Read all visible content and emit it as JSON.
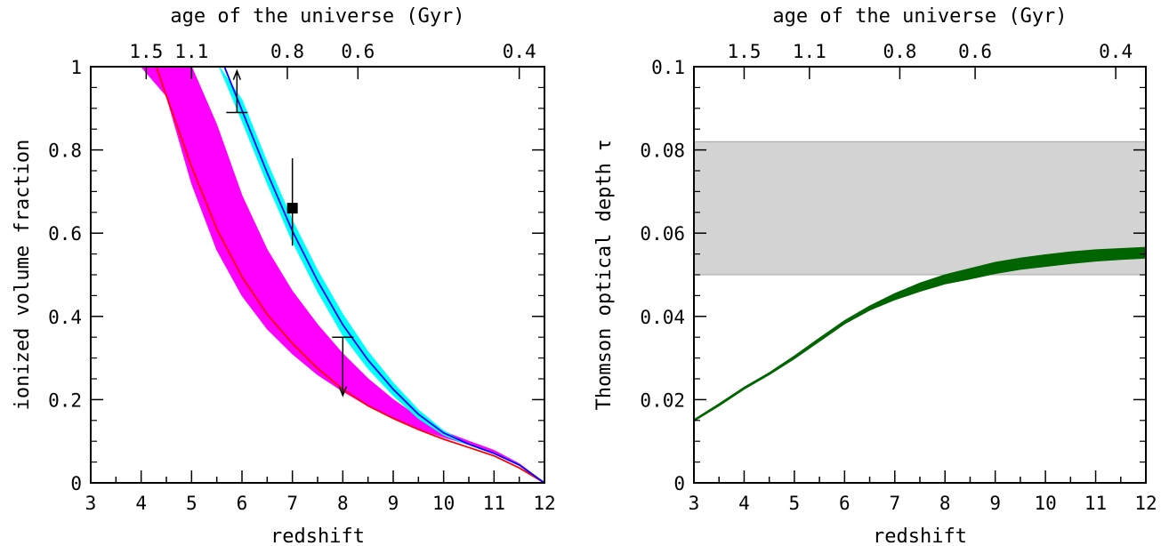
{
  "chart_data": [
    {
      "type": "line",
      "xlabel": "redshift",
      "ylabel": "ionized volume fraction",
      "top_axis_label": "age of the universe (Gyr)",
      "xlim": [
        3,
        12
      ],
      "ylim": [
        0,
        1
      ],
      "x_ticks": [
        "3",
        "4",
        "5",
        "6",
        "7",
        "8",
        "9",
        "10",
        "11",
        "12"
      ],
      "y_ticks": [
        "0",
        "0.2",
        "0.4",
        "0.6",
        "0.8",
        "1"
      ],
      "top_ticks": [
        {
          "label": "1.5",
          "z": 4.1
        },
        {
          "label": "1.1",
          "z": 5.0
        },
        {
          "label": "0.8",
          "z": 6.9
        },
        {
          "label": "0.6",
          "z": 8.3
        },
        {
          "label": "0.4",
          "z": 11.5
        }
      ],
      "series": [
        {
          "kind": "band",
          "color": "#ff00ff",
          "x": [
            4.0,
            4.5,
            5.0,
            5.5,
            6.0,
            6.5,
            7.0,
            7.5,
            8.0,
            8.5,
            9.0,
            9.5,
            10.0,
            10.5,
            11.0,
            11.5,
            12.0
          ],
          "lower": [
            1.0,
            0.93,
            0.72,
            0.56,
            0.45,
            0.37,
            0.31,
            0.26,
            0.22,
            0.185,
            0.155,
            0.13,
            0.11,
            0.092,
            0.07,
            0.042,
            0.0
          ],
          "upper": [
            1.0,
            1.0,
            1.0,
            0.86,
            0.69,
            0.56,
            0.46,
            0.38,
            0.31,
            0.25,
            0.2,
            0.158,
            0.123,
            0.1,
            0.078,
            0.046,
            0.0
          ]
        },
        {
          "kind": "line",
          "color": "#ff0000",
          "x": [
            4.3,
            4.5,
            5.0,
            5.5,
            6.0,
            6.5,
            7.0,
            7.5,
            8.0,
            8.5,
            9.0,
            9.5,
            10.0,
            10.5,
            11.0,
            11.5,
            12.0
          ],
          "y": [
            1.0,
            0.93,
            0.76,
            0.61,
            0.495,
            0.405,
            0.335,
            0.275,
            0.225,
            0.185,
            0.155,
            0.128,
            0.105,
            0.085,
            0.065,
            0.036,
            0.0
          ]
        },
        {
          "kind": "band",
          "color": "#00ffff",
          "x": [
            5.55,
            6.0,
            6.5,
            7.0,
            7.5,
            8.0,
            8.5,
            9.0,
            9.5,
            10.0,
            10.3,
            10.5,
            11.0,
            11.5,
            12.0
          ],
          "lower": [
            1.0,
            0.87,
            0.72,
            0.58,
            0.46,
            0.355,
            0.275,
            0.21,
            0.155,
            0.115,
            0.1,
            0.092,
            0.07,
            0.042,
            0.0
          ],
          "upper": [
            1.0,
            0.92,
            0.77,
            0.63,
            0.51,
            0.405,
            0.315,
            0.24,
            0.175,
            0.125,
            0.105,
            0.094,
            0.072,
            0.044,
            0.0
          ]
        },
        {
          "kind": "line",
          "color": "#0000ff",
          "x": [
            5.65,
            6.0,
            6.5,
            7.0,
            7.5,
            8.0,
            8.5,
            9.0,
            9.5,
            10.0,
            10.5,
            11.0,
            11.5,
            12.0
          ],
          "y": [
            1.0,
            0.895,
            0.745,
            0.605,
            0.485,
            0.38,
            0.295,
            0.225,
            0.165,
            0.12,
            0.093,
            0.071,
            0.043,
            0.0
          ]
        }
      ],
      "measurements": [
        {
          "kind": "point",
          "z": 7.0,
          "x_ion": 0.66,
          "err_low": 0.57,
          "err_high": 0.78
        },
        {
          "kind": "lower_limit",
          "z": 5.9,
          "x_ion": 0.89,
          "limit": 0.99
        },
        {
          "kind": "upper_limit",
          "z": 8.0,
          "x_ion": 0.35,
          "limit": 0.21
        }
      ]
    },
    {
      "type": "area",
      "xlabel": "redshift",
      "ylabel": "Thomson optical depth τ",
      "top_axis_label": "age of the universe (Gyr)",
      "xlim": [
        3,
        12
      ],
      "ylim": [
        0,
        0.1
      ],
      "x_ticks": [
        "3",
        "4",
        "5",
        "6",
        "7",
        "8",
        "9",
        "10",
        "11",
        "12"
      ],
      "y_ticks": [
        "0",
        "0.02",
        "0.04",
        "0.06",
        "0.08",
        "0.1"
      ],
      "top_ticks": [
        {
          "label": "1.5",
          "z": 4.0
        },
        {
          "label": "1.1",
          "z": 5.3
        },
        {
          "label": "0.8",
          "z": 7.1
        },
        {
          "label": "0.6",
          "z": 8.6
        },
        {
          "label": "0.4",
          "z": 11.4
        }
      ],
      "measurement_band": {
        "lower": 0.05,
        "upper": 0.082,
        "color": "#d3d3d3"
      },
      "series": [
        {
          "kind": "band",
          "color": "#006400",
          "x": [
            3,
            3.5,
            4,
            4.5,
            5,
            5.5,
            6,
            6.5,
            7,
            7.5,
            8,
            8.5,
            9,
            9.5,
            10,
            10.5,
            11,
            11.5,
            12
          ],
          "lower": [
            0.0148,
            0.0185,
            0.0225,
            0.026,
            0.0298,
            0.034,
            0.0382,
            0.0415,
            0.044,
            0.046,
            0.0478,
            0.049,
            0.0503,
            0.0513,
            0.052,
            0.0527,
            0.0533,
            0.0537,
            0.054
          ],
          "upper": [
            0.0152,
            0.019,
            0.023,
            0.0265,
            0.0305,
            0.0348,
            0.039,
            0.0425,
            0.0455,
            0.048,
            0.05,
            0.0515,
            0.053,
            0.054,
            0.0548,
            0.0555,
            0.056,
            0.0563,
            0.0566
          ]
        }
      ]
    }
  ]
}
